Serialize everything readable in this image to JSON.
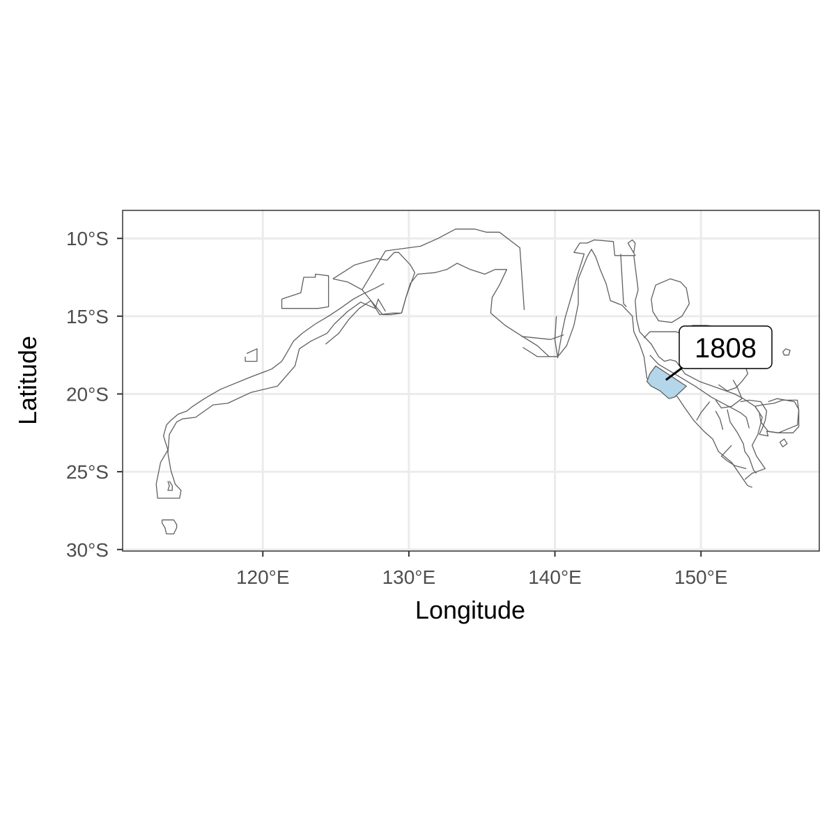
{
  "chart_data": {
    "type": "map",
    "xlabel": "Longitude",
    "ylabel": "Latitude",
    "x_ticks": [
      {
        "value": 120,
        "label": "120°E"
      },
      {
        "value": 130,
        "label": "130°E"
      },
      {
        "value": 140,
        "label": "140°E"
      },
      {
        "value": 150,
        "label": "150°E"
      }
    ],
    "y_ticks": [
      {
        "value": -10,
        "label": "10°S"
      },
      {
        "value": -15,
        "label": "15°S"
      },
      {
        "value": -20,
        "label": "20°S"
      },
      {
        "value": -25,
        "label": "25°S"
      },
      {
        "value": -30,
        "label": "30°S"
      }
    ],
    "xlim": [
      110.4,
      158.1
    ],
    "ylim": [
      -30.1,
      -8.2
    ],
    "grid": true,
    "highlighted_region": {
      "label": "1808",
      "fill_color": "#b3d6ea",
      "centroid": [
        147.6,
        -19.1
      ],
      "polygon": [
        [
          146.9,
          -18.2
        ],
        [
          149.0,
          -19.5
        ],
        [
          148.2,
          -20.2
        ],
        [
          147.8,
          -20.3
        ],
        [
          147.2,
          -19.8
        ],
        [
          146.6,
          -19.5
        ],
        [
          146.3,
          -19.2
        ],
        [
          146.5,
          -18.7
        ]
      ]
    },
    "regions": [
      [
        [
          124.3,
          -16.8
        ],
        [
          125.2,
          -16.1
        ],
        [
          125.9,
          -15.2
        ],
        [
          126.6,
          -14.5
        ],
        [
          127.4,
          -14.0
        ],
        [
          128.0,
          -14.9
        ],
        [
          128.9,
          -14.8
        ],
        [
          129.5,
          -14.8
        ],
        [
          129.8,
          -13.8
        ],
        [
          130.1,
          -12.9
        ],
        [
          130.6,
          -12.3
        ],
        [
          131.8,
          -12.2
        ],
        [
          132.6,
          -12.0
        ],
        [
          133.3,
          -11.6
        ],
        [
          134.2,
          -12.0
        ],
        [
          135.2,
          -12.3
        ],
        [
          135.9,
          -12.0
        ],
        [
          136.7,
          -12.0
        ],
        [
          136.2,
          -13.0
        ],
        [
          135.7,
          -13.8
        ],
        [
          135.6,
          -14.8
        ],
        [
          136.6,
          -15.6
        ],
        [
          137.6,
          -16.2
        ],
        [
          138.8,
          -16.9
        ],
        [
          139.6,
          -17.6
        ],
        [
          140.2,
          -17.6
        ],
        [
          140.8,
          -16.9
        ],
        [
          141.3,
          -15.6
        ],
        [
          141.6,
          -14.2
        ],
        [
          141.6,
          -12.6
        ],
        [
          142.2,
          -11.2
        ],
        [
          142.5,
          -10.7
        ],
        [
          142.8,
          -11.2
        ],
        [
          143.1,
          -12.0
        ],
        [
          143.5,
          -12.9
        ],
        [
          143.8,
          -14.0
        ],
        [
          144.6,
          -14.3
        ],
        [
          145.3,
          -15.0
        ],
        [
          145.4,
          -16.0
        ],
        [
          145.8,
          -16.8
        ],
        [
          146.1,
          -17.6
        ],
        [
          146.2,
          -18.3
        ],
        [
          146.3,
          -19.0
        ],
        [
          147.4,
          -19.4
        ],
        [
          148.4,
          -20.2
        ],
        [
          148.9,
          -20.9
        ],
        [
          149.5,
          -21.7
        ],
        [
          150.2,
          -22.4
        ],
        [
          150.8,
          -22.9
        ],
        [
          151.2,
          -23.7
        ],
        [
          152.1,
          -24.4
        ],
        [
          152.9,
          -25.5
        ],
        [
          153.2,
          -25.9
        ],
        [
          153.5,
          -26.0
        ]
      ],
      [
        [
          126.8,
          -13.3
        ],
        [
          128.4,
          -10.8
        ],
        [
          130.8,
          -10.5
        ],
        [
          132.0,
          -10.0
        ],
        [
          133.2,
          -9.4
        ],
        [
          134.5,
          -9.4
        ],
        [
          135.3,
          -9.6
        ],
        [
          136.2,
          -9.6
        ],
        [
          137.6,
          -10.6
        ],
        [
          137.9,
          -14.6
        ]
      ],
      [
        [
          124.8,
          -12.6
        ],
        [
          126.3,
          -11.7
        ],
        [
          127.8,
          -11.3
        ],
        [
          128.5,
          -11.4
        ],
        [
          129.0,
          -10.9
        ],
        [
          129.3,
          -10.9
        ],
        [
          130.1,
          -11.7
        ],
        [
          130.4,
          -12.2
        ],
        [
          129.8,
          -13.8
        ],
        [
          129.5,
          -14.8
        ],
        [
          128.8,
          -14.9
        ],
        [
          128.2,
          -14.9
        ],
        [
          127.4,
          -14.0
        ],
        [
          126.8,
          -13.3
        ],
        [
          125.8,
          -12.8
        ],
        [
          124.8,
          -12.6
        ]
      ],
      [
        [
          137.8,
          -17.0
        ],
        [
          138.8,
          -17.6
        ],
        [
          140.2,
          -17.6
        ],
        [
          140.5,
          -16.0
        ],
        [
          140.7,
          -15.1
        ],
        [
          141.6,
          -12.2
        ],
        [
          142.0,
          -11.0
        ],
        [
          141.3,
          -10.9
        ],
        [
          141.7,
          -10.3
        ],
        [
          142.2,
          -10.3
        ],
        [
          142.7,
          -10.1
        ],
        [
          144.0,
          -10.2
        ],
        [
          144.1,
          -11.1
        ],
        [
          145.5,
          -11.1
        ],
        [
          145.0,
          -10.3
        ],
        [
          145.3,
          -10.1
        ],
        [
          145.5,
          -10.3
        ],
        [
          145.4,
          -10.9
        ]
      ],
      [
        [
          137.7,
          -16.3
        ],
        [
          139.7,
          -16.5
        ],
        [
          140.6,
          -16.2
        ]
      ],
      [
        [
          140.2,
          -17.7
        ],
        [
          140.0,
          -16.5
        ],
        [
          140.1,
          -15.0
        ]
      ],
      [
        [
          144.5,
          -11.0
        ],
        [
          144.7,
          -14.2
        ],
        [
          144.9,
          -14.4
        ]
      ],
      [
        [
          145.4,
          -11.1
        ],
        [
          145.7,
          -13.3
        ],
        [
          145.5,
          -14.0
        ],
        [
          145.6,
          -15.2
        ],
        [
          145.8,
          -16.0
        ],
        [
          146.6,
          -16.8
        ],
        [
          147.1,
          -17.6
        ],
        [
          147.5,
          -17.9
        ],
        [
          147.9,
          -17.8
        ],
        [
          148.3,
          -17.9
        ],
        [
          148.9,
          -18.7
        ],
        [
          149.9,
          -19.2
        ],
        [
          151.1,
          -19.6
        ],
        [
          152.3,
          -20.0
        ],
        [
          152.9,
          -20.3
        ],
        [
          153.7,
          -20.8
        ],
        [
          154.2,
          -21.5
        ],
        [
          153.9,
          -22.6
        ],
        [
          153.5,
          -23.3
        ],
        [
          153.8,
          -24.0
        ],
        [
          154.4,
          -24.8
        ],
        [
          153.5,
          -25.1
        ],
        [
          153.0,
          -25.5
        ]
      ],
      [
        [
          146.1,
          -16.4
        ],
        [
          146.5,
          -16.0
        ],
        [
          148.3,
          -16.0
        ],
        [
          148.6,
          -16.1
        ]
      ],
      [
        [
          146.5,
          -17.5
        ],
        [
          147.1,
          -18.1
        ],
        [
          148.0,
          -18.6
        ],
        [
          149.6,
          -19.5
        ],
        [
          150.7,
          -20.2
        ],
        [
          151.1,
          -20.4
        ],
        [
          151.9,
          -20.8
        ],
        [
          152.7,
          -21.2
        ],
        [
          153.1,
          -21.5
        ],
        [
          153.3,
          -22.2
        ]
      ],
      [
        [
          150.6,
          -20.5
        ],
        [
          150.0,
          -21.2
        ],
        [
          149.7,
          -21.7
        ]
      ],
      [
        [
          151.8,
          -21.0
        ],
        [
          152.0,
          -21.8
        ],
        [
          152.5,
          -22.5
        ],
        [
          152.9,
          -23.2
        ],
        [
          153.0,
          -23.7
        ],
        [
          153.3,
          -24.1
        ],
        [
          153.6,
          -24.9
        ],
        [
          153.8,
          -25.1
        ]
      ],
      [
        [
          152.1,
          -23.3
        ],
        [
          151.4,
          -24.0
        ],
        [
          151.8,
          -24.3
        ],
        [
          152.3,
          -24.6
        ],
        [
          153.1,
          -24.8
        ]
      ],
      [
        [
          151.0,
          -21.1
        ],
        [
          151.3,
          -21.6
        ],
        [
          151.5,
          -22.3
        ]
      ],
      [
        [
          146.9,
          -13.0
        ],
        [
          147.9,
          -12.6
        ],
        [
          148.6,
          -12.8
        ],
        [
          149.0,
          -13.2
        ],
        [
          149.2,
          -14.2
        ],
        [
          148.7,
          -15.0
        ],
        [
          148.0,
          -15.4
        ],
        [
          147.1,
          -15.3
        ],
        [
          146.7,
          -14.7
        ],
        [
          146.6,
          -13.9
        ],
        [
          146.9,
          -13.0
        ]
      ],
      [
        [
          149.0,
          -16.0
        ],
        [
          149.4,
          -15.6
        ],
        [
          150.4,
          -15.6
        ],
        [
          151.2,
          -15.7
        ],
        [
          151.3,
          -16.6
        ],
        [
          151.1,
          -17.2
        ],
        [
          150.3,
          -17.3
        ],
        [
          149.6,
          -17.0
        ],
        [
          149.0,
          -16.4
        ]
      ],
      [
        [
          152.2,
          -19.1
        ],
        [
          152.5,
          -19.6
        ],
        [
          152.8,
          -20.3
        ],
        [
          152.1,
          -20.8
        ],
        [
          151.4,
          -20.9
        ],
        [
          151.0,
          -20.4
        ]
      ],
      [
        [
          152.7,
          -20.5
        ],
        [
          153.3,
          -20.4
        ],
        [
          154.1,
          -20.5
        ],
        [
          154.5,
          -21.1
        ],
        [
          154.4,
          -21.7
        ],
        [
          154.2,
          -22.2
        ],
        [
          154.0,
          -22.6
        ],
        [
          154.6,
          -22.7
        ],
        [
          154.5,
          -22.4
        ],
        [
          155.3,
          -22.5
        ],
        [
          156.6,
          -22.0
        ],
        [
          156.7,
          -21.0
        ],
        [
          156.4,
          -20.5
        ],
        [
          155.2,
          -20.3
        ],
        [
          154.6,
          -20.5
        ]
      ],
      [
        [
          151.2,
          -17.4
        ],
        [
          152.6,
          -17.5
        ],
        [
          153.0,
          -18.1
        ],
        [
          153.2,
          -18.7
        ],
        [
          152.8,
          -19.2
        ],
        [
          152.4,
          -19.6
        ],
        [
          151.8,
          -19.8
        ],
        [
          151.2,
          -19.4
        ]
      ],
      [
        [
          153.7,
          -20.8
        ],
        [
          154.2,
          -20.7
        ],
        [
          155.0,
          -20.6
        ],
        [
          155.6,
          -20.4
        ],
        [
          156.6,
          -20.4
        ],
        [
          156.7,
          -21.1
        ],
        [
          156.7,
          -22.1
        ],
        [
          156.3,
          -22.5
        ],
        [
          155.3,
          -22.5
        ],
        [
          154.6,
          -22.4
        ],
        [
          154.1,
          -21.8
        ],
        [
          154.0,
          -21.2
        ],
        [
          153.7,
          -20.8
        ]
      ],
      [
        [
          113.1,
          -26.7
        ],
        [
          114.3,
          -26.7
        ],
        [
          114.4,
          -26.2
        ],
        [
          114.0,
          -25.8
        ],
        [
          113.7,
          -24.9
        ],
        [
          113.5,
          -23.8
        ],
        [
          113.6,
          -22.6
        ],
        [
          114.1,
          -21.8
        ],
        [
          114.5,
          -21.6
        ],
        [
          115.4,
          -21.5
        ],
        [
          116.6,
          -20.7
        ],
        [
          117.6,
          -20.6
        ],
        [
          119.2,
          -19.9
        ],
        [
          121.0,
          -19.5
        ],
        [
          122.2,
          -18.2
        ],
        [
          122.5,
          -17.1
        ],
        [
          123.3,
          -16.6
        ],
        [
          124.4,
          -16.1
        ],
        [
          124.9,
          -15.5
        ],
        [
          125.8,
          -14.7
        ],
        [
          126.7,
          -14.1
        ],
        [
          127.7,
          -14.5
        ],
        [
          127.9,
          -13.9
        ],
        [
          128.4,
          -14.7
        ]
      ],
      [
        [
          112.7,
          -25.8
        ],
        [
          112.8,
          -26.7
        ],
        [
          113.1,
          -26.7
        ]
      ],
      [
        [
          112.7,
          -25.8
        ],
        [
          113.0,
          -24.4
        ],
        [
          113.5,
          -23.6
        ],
        [
          113.2,
          -22.7
        ],
        [
          113.4,
          -22.0
        ],
        [
          113.7,
          -21.7
        ],
        [
          114.2,
          -21.3
        ],
        [
          114.8,
          -21.1
        ],
        [
          115.2,
          -20.8
        ],
        [
          116.0,
          -20.3
        ],
        [
          117.1,
          -19.7
        ],
        [
          119.2,
          -18.9
        ],
        [
          120.6,
          -18.4
        ],
        [
          121.3,
          -17.9
        ],
        [
          121.8,
          -17.1
        ],
        [
          122.1,
          -16.6
        ],
        [
          122.7,
          -16.1
        ],
        [
          123.6,
          -15.5
        ],
        [
          124.5,
          -15.0
        ],
        [
          125.3,
          -14.5
        ],
        [
          126.2,
          -13.9
        ],
        [
          126.8,
          -13.6
        ],
        [
          127.7,
          -13.2
        ],
        [
          128.3,
          -12.9
        ]
      ],
      [
        [
          121.3,
          -13.9
        ],
        [
          121.3,
          -14.5
        ],
        [
          123.8,
          -14.5
        ],
        [
          124.5,
          -14.4
        ],
        [
          124.5,
          -12.4
        ],
        [
          123.6,
          -12.3
        ],
        [
          123.6,
          -12.5
        ],
        [
          122.8,
          -12.5
        ],
        [
          122.6,
          -13.5
        ],
        [
          121.3,
          -13.9
        ]
      ],
      [
        [
          118.8,
          -17.6
        ],
        [
          118.8,
          -17.9
        ],
        [
          119.6,
          -17.9
        ],
        [
          119.6,
          -17.1
        ],
        [
          118.9,
          -17.4
        ]
      ],
      [
        [
          113.1,
          -28.1
        ],
        [
          113.9,
          -28.1
        ],
        [
          114.1,
          -28.4
        ],
        [
          114.1,
          -28.6
        ],
        [
          113.9,
          -29.0
        ],
        [
          113.4,
          -29.0
        ],
        [
          113.3,
          -28.6
        ],
        [
          113.1,
          -28.3
        ],
        [
          113.1,
          -28.1
        ]
      ],
      [
        [
          113.5,
          -25.6
        ],
        [
          113.6,
          -25.9
        ],
        [
          113.5,
          -26.2
        ],
        [
          113.8,
          -26.2
        ],
        [
          113.8,
          -25.9
        ],
        [
          113.6,
          -25.6
        ]
      ],
      [
        [
          155.6,
          -17.3
        ],
        [
          155.8,
          -17.1
        ],
        [
          156.1,
          -17.2
        ],
        [
          156.0,
          -17.5
        ],
        [
          155.7,
          -17.5
        ],
        [
          155.6,
          -17.3
        ]
      ],
      [
        [
          155.4,
          -23.1
        ],
        [
          155.7,
          -22.9
        ],
        [
          155.9,
          -23.2
        ],
        [
          155.6,
          -23.4
        ],
        [
          155.4,
          -23.1
        ]
      ]
    ]
  }
}
